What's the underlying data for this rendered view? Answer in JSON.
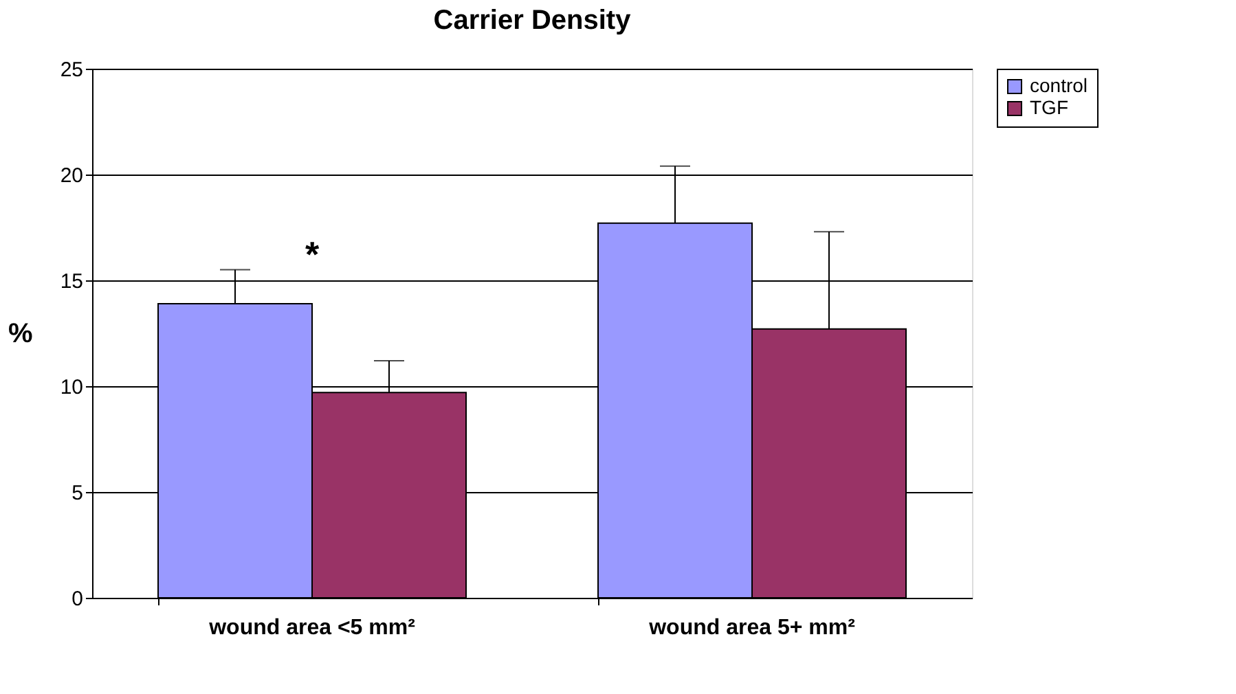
{
  "chart_data": {
    "type": "bar",
    "title": "Carrier Density",
    "ylabel": "%",
    "categories": [
      "wound area <5 mm²",
      "wound area 5+ mm²"
    ],
    "series": [
      {
        "name": "control",
        "color": "#9999ff",
        "values": [
          13.9,
          17.7
        ],
        "errors": [
          [
            13.9,
            15.5
          ],
          [
            17.7,
            20.4
          ]
        ]
      },
      {
        "name": "TGF",
        "color": "#993366",
        "values": [
          9.7,
          12.7
        ],
        "errors": [
          [
            9.7,
            11.2
          ],
          [
            12.7,
            17.3
          ]
        ]
      }
    ],
    "ylim": [
      0,
      25
    ],
    "yticks": [
      0,
      5,
      10,
      15,
      20,
      25
    ],
    "grid": "y",
    "legend": "right",
    "annotations": [
      "*"
    ]
  }
}
